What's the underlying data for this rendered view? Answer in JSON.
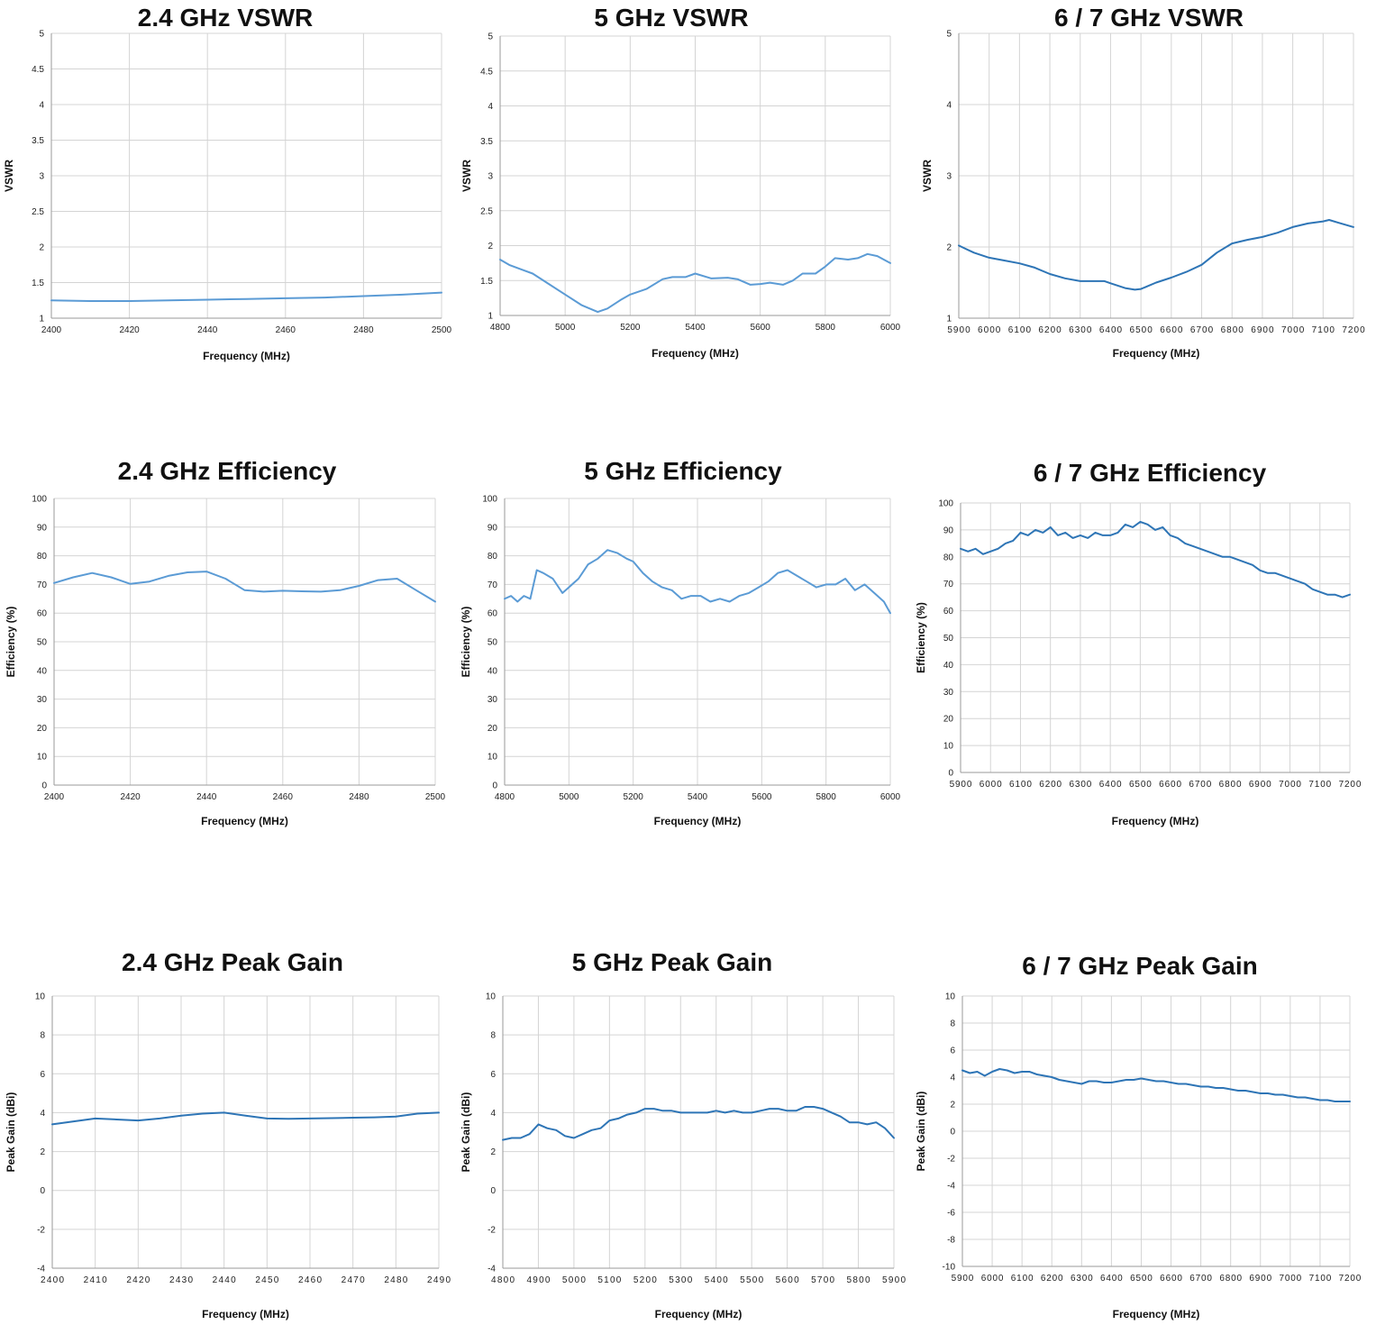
{
  "colors": {
    "line_light": "#5b9bd5",
    "line_dark": "#2e75b6",
    "grid": "#d4d4d4"
  },
  "chart_data": [
    {
      "type": "line",
      "title": "2.4 GHz VSWR",
      "xlabel": "Frequency (MHz)",
      "ylabel": "VSWR",
      "xlim": [
        2400,
        2500
      ],
      "ylim": [
        1,
        5
      ],
      "xticks": [
        2400,
        2420,
        2440,
        2460,
        2480,
        2500
      ],
      "yticks": [
        1,
        1.5,
        2,
        2.5,
        3,
        3.5,
        4,
        4.5,
        5
      ],
      "grid": true,
      "legend": "none",
      "series": [
        {
          "color": "#5b9bd5",
          "x": [
            2400,
            2410,
            2420,
            2430,
            2440,
            2450,
            2460,
            2470,
            2480,
            2490,
            2500
          ],
          "y": [
            1.25,
            1.24,
            1.24,
            1.25,
            1.26,
            1.27,
            1.28,
            1.29,
            1.31,
            1.33,
            1.36
          ]
        }
      ]
    },
    {
      "type": "line",
      "title": "5 GHz VSWR",
      "xlabel": "Frequency (MHz)",
      "ylabel": "VSWR",
      "xlim": [
        4800,
        6000
      ],
      "ylim": [
        1,
        5
      ],
      "xticks": [
        4800,
        5000,
        5200,
        5400,
        5600,
        5800,
        6000
      ],
      "yticks": [
        1,
        1.5,
        2,
        2.5,
        3,
        3.5,
        4,
        4.5,
        5
      ],
      "grid": true,
      "legend": "none",
      "series": [
        {
          "color": "#5b9bd5",
          "x": [
            4800,
            4830,
            4870,
            4900,
            4950,
            5000,
            5050,
            5100,
            5130,
            5170,
            5200,
            5250,
            5300,
            5330,
            5370,
            5400,
            5450,
            5500,
            5530,
            5570,
            5600,
            5630,
            5670,
            5700,
            5730,
            5770,
            5800,
            5830,
            5870,
            5900,
            5930,
            5960,
            6000
          ],
          "y": [
            1.8,
            1.72,
            1.65,
            1.6,
            1.45,
            1.3,
            1.15,
            1.05,
            1.1,
            1.22,
            1.3,
            1.38,
            1.52,
            1.55,
            1.55,
            1.6,
            1.53,
            1.54,
            1.52,
            1.44,
            1.45,
            1.47,
            1.44,
            1.5,
            1.6,
            1.6,
            1.7,
            1.82,
            1.8,
            1.82,
            1.88,
            1.85,
            1.75
          ]
        }
      ]
    },
    {
      "type": "line",
      "title": "6 / 7 GHz VSWR",
      "xlabel": "Frequency (MHz)",
      "ylabel": "VSWR",
      "xlim": [
        5900,
        7200
      ],
      "ylim": [
        1,
        5
      ],
      "xticks": [
        5900,
        6000,
        6100,
        6200,
        6300,
        6400,
        6500,
        6600,
        6700,
        6800,
        6900,
        7000,
        7100,
        7200
      ],
      "yticks": [
        1,
        2,
        3,
        4,
        5
      ],
      "grid": true,
      "legend": "none",
      "series": [
        {
          "color": "#2e75b6",
          "x": [
            5900,
            5920,
            5950,
            6000,
            6050,
            6100,
            6150,
            6200,
            6250,
            6300,
            6350,
            6380,
            6400,
            6450,
            6480,
            6500,
            6550,
            6600,
            6650,
            6700,
            6750,
            6800,
            6850,
            6900,
            6950,
            7000,
            7050,
            7100,
            7120,
            7150,
            7200
          ],
          "y": [
            2.02,
            1.98,
            1.92,
            1.85,
            1.81,
            1.77,
            1.71,
            1.62,
            1.56,
            1.52,
            1.52,
            1.52,
            1.49,
            1.42,
            1.4,
            1.41,
            1.5,
            1.57,
            1.65,
            1.75,
            1.92,
            2.05,
            2.1,
            2.14,
            2.2,
            2.28,
            2.33,
            2.36,
            2.38,
            2.34,
            2.28
          ]
        }
      ]
    },
    {
      "type": "line",
      "title": "2.4 GHz  Efficiency",
      "xlabel": "Frequency (MHz)",
      "ylabel": "Efficiency (%)",
      "xlim": [
        2400,
        2500
      ],
      "ylim": [
        0,
        100
      ],
      "xticks": [
        2400,
        2420,
        2440,
        2460,
        2480,
        2500
      ],
      "yticks": [
        0,
        10,
        20,
        30,
        40,
        50,
        60,
        70,
        80,
        90,
        100
      ],
      "grid": true,
      "legend": "none",
      "series": [
        {
          "color": "#5b9bd5",
          "x": [
            2400,
            2405,
            2410,
            2415,
            2420,
            2425,
            2430,
            2435,
            2440,
            2445,
            2450,
            2455,
            2460,
            2465,
            2470,
            2475,
            2480,
            2485,
            2490,
            2495,
            2500
          ],
          "y": [
            70.5,
            72.5,
            74,
            72.5,
            70.2,
            71,
            73,
            74.2,
            74.5,
            72,
            68,
            67.5,
            67.8,
            67.6,
            67.5,
            68,
            69.5,
            71.5,
            72,
            68,
            64
          ]
        }
      ]
    },
    {
      "type": "line",
      "title": "5 GHz Efficiency",
      "xlabel": "Frequency (MHz)",
      "ylabel": "Efficiency (%)",
      "xlim": [
        4800,
        6000
      ],
      "ylim": [
        0,
        100
      ],
      "xticks": [
        4800,
        5000,
        5200,
        5400,
        5600,
        5800,
        6000
      ],
      "yticks": [
        0,
        10,
        20,
        30,
        40,
        50,
        60,
        70,
        80,
        90,
        100
      ],
      "grid": true,
      "legend": "none",
      "series": [
        {
          "color": "#5b9bd5",
          "x": [
            4800,
            4820,
            4840,
            4860,
            4880,
            4890,
            4900,
            4920,
            4950,
            4980,
            5000,
            5030,
            5060,
            5090,
            5120,
            5150,
            5180,
            5200,
            5230,
            5260,
            5290,
            5320,
            5350,
            5380,
            5410,
            5440,
            5470,
            5500,
            5530,
            5560,
            5590,
            5620,
            5650,
            5680,
            5710,
            5740,
            5770,
            5800,
            5830,
            5860,
            5890,
            5920,
            5950,
            5980,
            6000
          ],
          "y": [
            65,
            66,
            64,
            66,
            65,
            70,
            75,
            74,
            72,
            67,
            69,
            72,
            77,
            79,
            82,
            81,
            79,
            78,
            74,
            71,
            69,
            68,
            65,
            66,
            66,
            64,
            65,
            64,
            66,
            67,
            69,
            71,
            74,
            75,
            73,
            71,
            69,
            70,
            70,
            72,
            68,
            70,
            67,
            64,
            60
          ]
        }
      ]
    },
    {
      "type": "line",
      "title": "6 / 7 GHz Efficiency",
      "xlabel": "Frequency (MHz)",
      "ylabel": "Efficiency (%)",
      "xlim": [
        5900,
        7200
      ],
      "ylim": [
        0,
        100
      ],
      "xticks": [
        5900,
        6000,
        6100,
        6200,
        6300,
        6400,
        6500,
        6600,
        6700,
        6800,
        6900,
        7000,
        7100,
        7200
      ],
      "yticks": [
        0,
        10,
        20,
        30,
        40,
        50,
        60,
        70,
        80,
        90,
        100
      ],
      "grid": true,
      "legend": "none",
      "series": [
        {
          "color": "#2e75b6",
          "x": [
            5900,
            5925,
            5950,
            5975,
            6000,
            6025,
            6050,
            6075,
            6100,
            6125,
            6150,
            6175,
            6200,
            6225,
            6250,
            6275,
            6300,
            6325,
            6350,
            6375,
            6400,
            6425,
            6450,
            6475,
            6500,
            6525,
            6550,
            6575,
            6600,
            6625,
            6650,
            6675,
            6700,
            6725,
            6750,
            6775,
            6800,
            6825,
            6850,
            6875,
            6900,
            6925,
            6950,
            6975,
            7000,
            7025,
            7050,
            7075,
            7100,
            7125,
            7150,
            7175,
            7200
          ],
          "y": [
            83,
            82,
            83,
            81,
            82,
            83,
            85,
            86,
            89,
            88,
            90,
            89,
            91,
            88,
            89,
            87,
            88,
            87,
            89,
            88,
            88,
            89,
            92,
            91,
            93,
            92,
            90,
            91,
            88,
            87,
            85,
            84,
            83,
            82,
            81,
            80,
            80,
            79,
            78,
            77,
            75,
            74,
            74,
            73,
            72,
            71,
            70,
            68,
            67,
            66,
            66,
            65,
            66
          ]
        }
      ]
    },
    {
      "type": "line",
      "title": "2.4 GHz Peak Gain",
      "xlabel": "Frequency (MHz)",
      "ylabel": "Peak Gain (dBi)",
      "xlim": [
        2400,
        2490
      ],
      "ylim": [
        -4,
        10
      ],
      "xticks": [
        2400,
        2410,
        2420,
        2430,
        2440,
        2450,
        2460,
        2470,
        2480,
        2490
      ],
      "yticks": [
        -4,
        -2,
        0,
        2,
        4,
        6,
        8,
        10
      ],
      "grid": true,
      "legend": "none",
      "series": [
        {
          "color": "#2e75b6",
          "x": [
            2400,
            2405,
            2410,
            2415,
            2420,
            2425,
            2430,
            2435,
            2440,
            2445,
            2450,
            2455,
            2460,
            2465,
            2470,
            2475,
            2480,
            2485,
            2490
          ],
          "y": [
            3.4,
            3.55,
            3.7,
            3.65,
            3.6,
            3.7,
            3.85,
            3.95,
            4.0,
            3.85,
            3.7,
            3.68,
            3.7,
            3.72,
            3.74,
            3.76,
            3.8,
            3.95,
            4.0
          ]
        }
      ]
    },
    {
      "type": "line",
      "title": "5 GHz Peak Gain",
      "xlabel": "Frequency (MHz)",
      "ylabel": "Peak Gain (dBi)",
      "xlim": [
        4800,
        5900
      ],
      "ylim": [
        -4,
        10
      ],
      "xticks": [
        4800,
        4900,
        5000,
        5100,
        5200,
        5300,
        5400,
        5500,
        5600,
        5700,
        5800,
        5900
      ],
      "yticks": [
        -4,
        -2,
        0,
        2,
        4,
        6,
        8,
        10
      ],
      "grid": true,
      "legend": "none",
      "series": [
        {
          "color": "#2e75b6",
          "x": [
            4800,
            4825,
            4850,
            4875,
            4900,
            4925,
            4950,
            4975,
            5000,
            5025,
            5050,
            5075,
            5100,
            5125,
            5150,
            5175,
            5200,
            5225,
            5250,
            5275,
            5300,
            5325,
            5350,
            5375,
            5400,
            5425,
            5450,
            5475,
            5500,
            5525,
            5550,
            5575,
            5600,
            5625,
            5650,
            5675,
            5700,
            5725,
            5750,
            5775,
            5800,
            5825,
            5850,
            5875,
            5900
          ],
          "y": [
            2.6,
            2.7,
            2.7,
            2.9,
            3.4,
            3.2,
            3.1,
            2.8,
            2.7,
            2.9,
            3.1,
            3.2,
            3.6,
            3.7,
            3.9,
            4.0,
            4.2,
            4.2,
            4.1,
            4.1,
            4.0,
            4.0,
            4.0,
            4.0,
            4.1,
            4.0,
            4.1,
            4.0,
            4.0,
            4.1,
            4.2,
            4.2,
            4.1,
            4.1,
            4.3,
            4.3,
            4.2,
            4.0,
            3.8,
            3.5,
            3.5,
            3.4,
            3.5,
            3.2,
            2.7
          ]
        }
      ]
    },
    {
      "type": "line",
      "title": "6 / 7 GHz Peak Gain",
      "xlabel": "Frequency (MHz)",
      "ylabel": "Peak Gain (dBi)",
      "xlim": [
        5900,
        7200
      ],
      "ylim": [
        -10,
        10
      ],
      "xticks": [
        5900,
        6000,
        6100,
        6200,
        6300,
        6400,
        6500,
        6600,
        6700,
        6800,
        6900,
        7000,
        7100,
        7200
      ],
      "yticks": [
        -10,
        -8,
        -6,
        -4,
        -2,
        0,
        2,
        4,
        6,
        8,
        10
      ],
      "grid": true,
      "legend": "none",
      "series": [
        {
          "color": "#2e75b6",
          "x": [
            5900,
            5925,
            5950,
            5975,
            6000,
            6025,
            6050,
            6075,
            6100,
            6125,
            6150,
            6175,
            6200,
            6225,
            6250,
            6275,
            6300,
            6325,
            6350,
            6375,
            6400,
            6425,
            6450,
            6475,
            6500,
            6525,
            6550,
            6575,
            6600,
            6625,
            6650,
            6675,
            6700,
            6725,
            6750,
            6775,
            6800,
            6825,
            6850,
            6875,
            6900,
            6925,
            6950,
            6975,
            7000,
            7025,
            7050,
            7075,
            7100,
            7125,
            7150,
            7175,
            7200
          ],
          "y": [
            4.5,
            4.3,
            4.4,
            4.1,
            4.4,
            4.6,
            4.5,
            4.3,
            4.4,
            4.4,
            4.2,
            4.1,
            4.0,
            3.8,
            3.7,
            3.6,
            3.5,
            3.7,
            3.7,
            3.6,
            3.6,
            3.7,
            3.8,
            3.8,
            3.9,
            3.8,
            3.7,
            3.7,
            3.6,
            3.5,
            3.5,
            3.4,
            3.3,
            3.3,
            3.2,
            3.2,
            3.1,
            3.0,
            3.0,
            2.9,
            2.8,
            2.8,
            2.7,
            2.7,
            2.6,
            2.5,
            2.5,
            2.4,
            2.3,
            2.3,
            2.2,
            2.2,
            2.2
          ]
        }
      ]
    }
  ]
}
